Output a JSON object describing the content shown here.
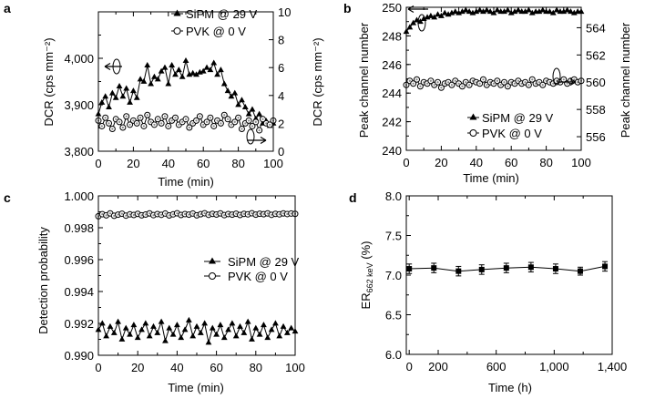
{
  "figure": {
    "colors": {
      "axis": "#000000",
      "marker_filled": "#000000",
      "marker_open_fill": "#ffffff",
      "open_marker_pattern": "#8a8a8a"
    }
  },
  "chart_data": [
    {
      "panel": "a",
      "type": "line",
      "xlabel": "Time (min)",
      "ylabel_left": "DCR (cps mm⁻²)",
      "ylabel_right": "DCR (cps mm⁻²)",
      "xlim": [
        0,
        100
      ],
      "ylim_left": [
        3800,
        4100
      ],
      "ylim_right": [
        0,
        10
      ],
      "x_ticks": [
        0,
        10,
        20,
        30,
        40,
        50,
        60,
        70,
        80,
        90,
        100
      ],
      "x_tick_labels": [
        "0",
        "20",
        "40",
        "60",
        "80",
        "100"
      ],
      "left_ticks": [
        3800,
        3900,
        4000
      ],
      "left_tick_labels": [
        "3,800",
        "3,900",
        "4,000"
      ],
      "right_ticks": [
        0,
        2,
        4,
        6,
        8,
        10
      ],
      "right_tick_labels": [
        "0",
        "2",
        "4",
        "6",
        "8",
        "10"
      ],
      "legend_position": "top-right",
      "series": [
        {
          "name": "SiPM @ 29 V",
          "axis": "left",
          "marker": "filled-triangle",
          "x": [
            0,
            2,
            4,
            6,
            8,
            10,
            12,
            14,
            16,
            18,
            20,
            22,
            24,
            26,
            28,
            30,
            32,
            34,
            36,
            38,
            40,
            42,
            44,
            46,
            48,
            50,
            52,
            54,
            56,
            58,
            60,
            62,
            64,
            66,
            68,
            70,
            72,
            74,
            76,
            78,
            80,
            82,
            84,
            86,
            88,
            90,
            92,
            94,
            96,
            98,
            100
          ],
          "y": [
            3880,
            3905,
            3918,
            3895,
            3925,
            3915,
            3940,
            3918,
            3935,
            3905,
            3930,
            3915,
            3955,
            3950,
            3985,
            3945,
            3960,
            3955,
            3972,
            3980,
            3945,
            3985,
            3965,
            3975,
            3960,
            3995,
            3965,
            3968,
            3965,
            3970,
            3972,
            3980,
            3975,
            3990,
            3965,
            3975,
            3945,
            3930,
            3918,
            3925,
            3900,
            3910,
            3895,
            3880,
            3890,
            3870,
            3880,
            3860,
            3865,
            3855,
            3860
          ]
        },
        {
          "name": "PVK @ 0 V",
          "axis": "right",
          "marker": "open-circle",
          "x": [
            0,
            2,
            4,
            6,
            8,
            10,
            12,
            14,
            16,
            18,
            20,
            22,
            24,
            26,
            28,
            30,
            32,
            34,
            36,
            38,
            40,
            42,
            44,
            46,
            48,
            50,
            52,
            54,
            56,
            58,
            60,
            62,
            64,
            66,
            68,
            70,
            72,
            74,
            76,
            78,
            80,
            82,
            84,
            86,
            88,
            90,
            92,
            94,
            96,
            98,
            100
          ],
          "y": [
            2.2,
            1.8,
            2.4,
            2.0,
            1.6,
            2.3,
            2.1,
            1.7,
            2.5,
            1.9,
            2.2,
            2.0,
            2.4,
            1.8,
            2.6,
            2.1,
            1.9,
            2.3,
            2.0,
            2.5,
            1.8,
            2.2,
            2.4,
            1.9,
            2.1,
            2.3,
            1.7,
            2.0,
            2.2,
            2.5,
            1.9,
            2.1,
            2.4,
            1.8,
            2.2,
            2.0,
            2.6,
            2.3,
            1.9,
            2.1,
            2.4,
            1.6,
            2.0,
            2.2,
            1.8,
            2.1,
            1.5,
            2.3,
            2.0,
            1.9,
            2.2
          ]
        }
      ],
      "annotations": [
        "left-arrow to SiPM",
        "right-arrow to PVK"
      ]
    },
    {
      "panel": "b",
      "type": "line",
      "xlabel": "Time (min)",
      "ylabel_left": "Peak channel number",
      "ylabel_right": "Peak channel number",
      "xlim": [
        0,
        100
      ],
      "ylim_left": [
        240,
        250
      ],
      "ylim_right": [
        555,
        565.5
      ],
      "x_ticks": [
        0,
        10,
        20,
        30,
        40,
        50,
        60,
        70,
        80,
        90,
        100
      ],
      "x_tick_labels": [
        "0",
        "20",
        "40",
        "60",
        "80",
        "100"
      ],
      "left_ticks": [
        240,
        242,
        244,
        246,
        248,
        250
      ],
      "left_tick_labels": [
        "240",
        "242",
        "244",
        "246",
        "248",
        "250"
      ],
      "right_ticks": [
        556,
        558,
        560,
        562,
        564
      ],
      "right_tick_labels": [
        "556",
        "558",
        "560",
        "562",
        "564"
      ],
      "legend_position": "bottom-right",
      "series": [
        {
          "name": "SiPM @ 29 V",
          "axis": "left",
          "marker": "filled-triangle",
          "x": [
            0,
            2,
            4,
            6,
            8,
            10,
            12,
            14,
            16,
            18,
            20,
            22,
            24,
            26,
            28,
            30,
            32,
            34,
            36,
            38,
            40,
            42,
            44,
            46,
            48,
            50,
            52,
            54,
            56,
            58,
            60,
            62,
            64,
            66,
            68,
            70,
            72,
            74,
            76,
            78,
            80,
            82,
            84,
            86,
            88,
            90,
            92,
            94,
            96,
            98,
            100
          ],
          "y": [
            248.3,
            248.6,
            248.9,
            249.1,
            249.0,
            249.2,
            249.3,
            249.4,
            249.3,
            249.5,
            249.4,
            249.6,
            249.5,
            249.6,
            249.7,
            249.6,
            249.7,
            249.8,
            249.7,
            249.6,
            249.7,
            249.8,
            249.7,
            249.8,
            249.7,
            249.6,
            249.8,
            249.7,
            249.7,
            249.8,
            249.6,
            249.7,
            249.8,
            249.7,
            249.7,
            249.8,
            249.6,
            249.7,
            249.7,
            249.8,
            249.7,
            249.7,
            249.6,
            249.8,
            249.7,
            249.7,
            249.8,
            249.7,
            249.6,
            249.7,
            249.7
          ]
        },
        {
          "name": "PVK @ 0 V",
          "axis": "right",
          "marker": "open-circle",
          "x": [
            0,
            2,
            4,
            6,
            8,
            10,
            12,
            14,
            16,
            18,
            20,
            22,
            24,
            26,
            28,
            30,
            32,
            34,
            36,
            38,
            40,
            42,
            44,
            46,
            48,
            50,
            52,
            54,
            56,
            58,
            60,
            62,
            64,
            66,
            68,
            70,
            72,
            74,
            76,
            78,
            80,
            82,
            84,
            86,
            88,
            90,
            92,
            94,
            96,
            98,
            100
          ],
          "y": [
            559.8,
            560.1,
            559.9,
            560.2,
            559.7,
            560.0,
            559.9,
            560.1,
            559.8,
            560.0,
            559.6,
            559.9,
            560.0,
            559.8,
            560.1,
            559.9,
            559.7,
            560.0,
            559.8,
            560.1,
            560.0,
            559.9,
            560.2,
            559.8,
            560.0,
            559.9,
            560.1,
            559.8,
            560.0,
            559.7,
            560.0,
            559.9,
            560.1,
            559.9,
            560.0,
            559.8,
            560.2,
            559.9,
            560.0,
            559.8,
            560.1,
            560.0,
            559.9,
            560.1,
            560.0,
            560.2,
            559.9,
            560.1,
            560.2,
            560.0,
            560.1
          ]
        }
      ],
      "annotations": [
        "left-arrow to SiPM",
        "right-arrow to PVK"
      ]
    },
    {
      "panel": "c",
      "type": "line",
      "xlabel": "Time (min)",
      "ylabel": "Detection probability",
      "xlim": [
        0,
        100
      ],
      "ylim": [
        0.99,
        1.0
      ],
      "x_ticks": [
        0,
        10,
        20,
        30,
        40,
        50,
        60,
        70,
        80,
        90,
        100
      ],
      "x_tick_labels": [
        "0",
        "20",
        "40",
        "60",
        "80",
        "100"
      ],
      "y_ticks": [
        0.99,
        0.992,
        0.994,
        0.996,
        0.998,
        1.0
      ],
      "y_tick_labels": [
        "0.990",
        "0.992",
        "0.994",
        "0.996",
        "0.998",
        "1.000"
      ],
      "legend_position": "center-right",
      "series": [
        {
          "name": "SiPM @ 29 V",
          "marker": "filled-triangle",
          "x": [
            0,
            2,
            4,
            6,
            8,
            10,
            12,
            14,
            16,
            18,
            20,
            22,
            24,
            26,
            28,
            30,
            32,
            34,
            36,
            38,
            40,
            42,
            44,
            46,
            48,
            50,
            52,
            54,
            56,
            58,
            60,
            62,
            64,
            66,
            68,
            70,
            72,
            74,
            76,
            78,
            80,
            82,
            84,
            86,
            88,
            90,
            92,
            94,
            96,
            98,
            100
          ],
          "y": [
            0.9916,
            0.992,
            0.9912,
            0.9918,
            0.9914,
            0.9921,
            0.991,
            0.9917,
            0.9913,
            0.9919,
            0.9911,
            0.9916,
            0.992,
            0.9912,
            0.9918,
            0.9914,
            0.9921,
            0.9909,
            0.9917,
            0.9913,
            0.9919,
            0.9911,
            0.9916,
            0.9922,
            0.9912,
            0.9918,
            0.9914,
            0.992,
            0.9908,
            0.9917,
            0.9913,
            0.9919,
            0.9911,
            0.9916,
            0.992,
            0.9912,
            0.9918,
            0.9914,
            0.9921,
            0.991,
            0.9917,
            0.9913,
            0.9919,
            0.9911,
            0.9916,
            0.992,
            0.9912,
            0.9918,
            0.9914,
            0.9917,
            0.9915
          ]
        },
        {
          "name": "PVK @ 0 V",
          "marker": "open-circle",
          "x": [
            0,
            2,
            4,
            6,
            8,
            10,
            12,
            14,
            16,
            18,
            20,
            22,
            24,
            26,
            28,
            30,
            32,
            34,
            36,
            38,
            40,
            42,
            44,
            46,
            48,
            50,
            52,
            54,
            56,
            58,
            60,
            62,
            64,
            66,
            68,
            70,
            72,
            74,
            76,
            78,
            80,
            82,
            84,
            86,
            88,
            90,
            92,
            94,
            96,
            98,
            100
          ],
          "y": [
            0.99872,
            0.99885,
            0.99878,
            0.9989,
            0.99875,
            0.99882,
            0.99888,
            0.99876,
            0.99884,
            0.9988,
            0.99887,
            0.99878,
            0.99883,
            0.9989,
            0.99879,
            0.99886,
            0.99881,
            0.99889,
            0.99877,
            0.99884,
            0.99891,
            0.9988,
            0.99886,
            0.99882,
            0.99889,
            0.99878,
            0.99885,
            0.99891,
            0.99881,
            0.99887,
            0.99883,
            0.9989,
            0.99879,
            0.99886,
            0.99882,
            0.99888,
            0.9988,
            0.99887,
            0.99884,
            0.99891,
            0.99882,
            0.99888,
            0.99885,
            0.9989,
            0.99881,
            0.99887,
            0.99884,
            0.9989,
            0.99886,
            0.99889,
            0.99887
          ]
        }
      ]
    },
    {
      "panel": "d",
      "type": "line",
      "xlabel": "Time (h)",
      "ylabel_main": "ER",
      "ylabel_sub": "662 keV",
      "ylabel_unit": " (%)",
      "xlim": [
        -20,
        1400
      ],
      "ylim": [
        6.0,
        8.0
      ],
      "x_ticks": [
        0,
        200,
        400,
        600,
        800,
        1000,
        1200,
        1400
      ],
      "x_tick_labels": [
        "0",
        "200",
        "600",
        "1,000",
        "1,400"
      ],
      "x_tick_label_positions": [
        0,
        200,
        600,
        1000,
        1400
      ],
      "y_ticks": [
        6.0,
        6.5,
        7.0,
        7.5,
        8.0
      ],
      "y_tick_labels": [
        "6.0",
        "6.5",
        "7.0",
        "7.5",
        "8.0"
      ],
      "series": [
        {
          "marker": "filled-square",
          "x": [
            0,
            170,
            340,
            500,
            670,
            840,
            1010,
            1180,
            1350
          ],
          "y": [
            7.08,
            7.09,
            7.05,
            7.07,
            7.09,
            7.1,
            7.08,
            7.05,
            7.11
          ],
          "error": [
            0.06,
            0.06,
            0.06,
            0.06,
            0.06,
            0.06,
            0.06,
            0.05,
            0.06
          ]
        }
      ]
    }
  ]
}
